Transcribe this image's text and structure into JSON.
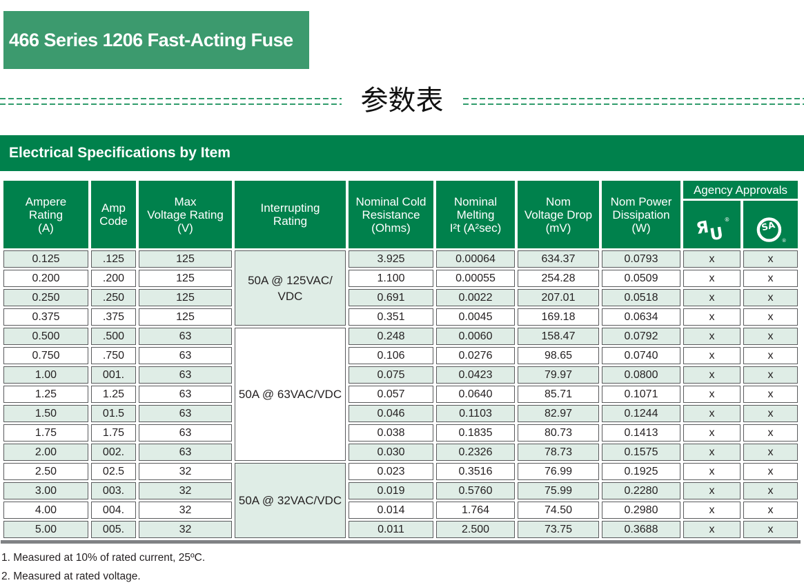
{
  "page": {
    "banner_title": "466 Series 1206 Fast-Acting Fuse",
    "cjk_title": "参数表",
    "footnotes": [
      "1. Measured at 10% of rated current, 25ºC.",
      "2. Measured at rated voltage."
    ]
  },
  "colors": {
    "banner_green": "#3C9A6E",
    "brand_green": "#00814C",
    "row_tint_green": "#DFEDE6",
    "cell_border_gray": "#58595B",
    "bottom_rule_gray": "#808285",
    "dash_green": "#2F9B6B"
  },
  "table": {
    "section_title": "Electrical Specifications by Item",
    "headers": [
      {
        "label": "Ampere\nRating\n(A)"
      },
      {
        "label": "Amp\nCode"
      },
      {
        "label": "Max\nVoltage Rating\n(V)"
      },
      {
        "label": "Interrupting\nRating"
      },
      {
        "label": "Nominal Cold\nResistance\n(Ohms)"
      },
      {
        "label": "Nominal\nMelting\nI²t (A²sec)"
      },
      {
        "label": "Nom\nVoltage Drop\n(mV)"
      },
      {
        "label": "Nom Power\nDissipation\n(W)"
      }
    ],
    "agency": {
      "label": "Agency Approvals",
      "logos": [
        {
          "name": "ul-recognized-mark"
        },
        {
          "name": "csa-mark"
        }
      ]
    },
    "groups": [
      {
        "interrupting_rating": "50A @ 125VAC/\nVDC",
        "rows": [
          {
            "ampere_rating": "0.125",
            "amp_code": ".125",
            "max_voltage_rating": "125",
            "nominal_cold_resistance": "3.925",
            "nominal_melting_i2t": "0.00064",
            "nom_voltage_drop": "634.37",
            "nom_power_dissipation": "0.0793",
            "ul": "x",
            "csa": "x"
          },
          {
            "ampere_rating": "0.200",
            "amp_code": ".200",
            "max_voltage_rating": "125",
            "nominal_cold_resistance": "1.100",
            "nominal_melting_i2t": "0.00055",
            "nom_voltage_drop": "254.28",
            "nom_power_dissipation": "0.0509",
            "ul": "x",
            "csa": "x"
          },
          {
            "ampere_rating": "0.250",
            "amp_code": ".250",
            "max_voltage_rating": "125",
            "nominal_cold_resistance": "0.691",
            "nominal_melting_i2t": "0.0022",
            "nom_voltage_drop": "207.01",
            "nom_power_dissipation": "0.0518",
            "ul": "x",
            "csa": "x"
          },
          {
            "ampere_rating": "0.375",
            "amp_code": ".375",
            "max_voltage_rating": "125",
            "nominal_cold_resistance": "0.351",
            "nominal_melting_i2t": "0.0045",
            "nom_voltage_drop": "169.18",
            "nom_power_dissipation": "0.0634",
            "ul": "x",
            "csa": "x"
          }
        ]
      },
      {
        "interrupting_rating": "50A @ 63VAC/VDC",
        "rows": [
          {
            "ampere_rating": "0.500",
            "amp_code": ".500",
            "max_voltage_rating": "63",
            "nominal_cold_resistance": "0.248",
            "nominal_melting_i2t": "0.0060",
            "nom_voltage_drop": "158.47",
            "nom_power_dissipation": "0.0792",
            "ul": "x",
            "csa": "x"
          },
          {
            "ampere_rating": "0.750",
            "amp_code": ".750",
            "max_voltage_rating": "63",
            "nominal_cold_resistance": "0.106",
            "nominal_melting_i2t": "0.0276",
            "nom_voltage_drop": "98.65",
            "nom_power_dissipation": "0.0740",
            "ul": "x",
            "csa": "x"
          },
          {
            "ampere_rating": "1.00",
            "amp_code": "001.",
            "max_voltage_rating": "63",
            "nominal_cold_resistance": "0.075",
            "nominal_melting_i2t": "0.0423",
            "nom_voltage_drop": "79.97",
            "nom_power_dissipation": "0.0800",
            "ul": "x",
            "csa": "x"
          },
          {
            "ampere_rating": "1.25",
            "amp_code": "1.25",
            "max_voltage_rating": "63",
            "nominal_cold_resistance": "0.057",
            "nominal_melting_i2t": "0.0640",
            "nom_voltage_drop": "85.71",
            "nom_power_dissipation": "0.1071",
            "ul": "x",
            "csa": "x"
          },
          {
            "ampere_rating": "1.50",
            "amp_code": "01.5",
            "max_voltage_rating": "63",
            "nominal_cold_resistance": "0.046",
            "nominal_melting_i2t": "0.1103",
            "nom_voltage_drop": "82.97",
            "nom_power_dissipation": "0.1244",
            "ul": "x",
            "csa": "x"
          },
          {
            "ampere_rating": "1.75",
            "amp_code": "1.75",
            "max_voltage_rating": "63",
            "nominal_cold_resistance": "0.038",
            "nominal_melting_i2t": "0.1835",
            "nom_voltage_drop": "80.73",
            "nom_power_dissipation": "0.1413",
            "ul": "x",
            "csa": "x"
          },
          {
            "ampere_rating": "2.00",
            "amp_code": "002.",
            "max_voltage_rating": "63",
            "nominal_cold_resistance": "0.030",
            "nominal_melting_i2t": "0.2326",
            "nom_voltage_drop": "78.73",
            "nom_power_dissipation": "0.1575",
            "ul": "x",
            "csa": "x"
          }
        ]
      },
      {
        "interrupting_rating": "50A @ 32VAC/VDC",
        "rows": [
          {
            "ampere_rating": "2.50",
            "amp_code": "02.5",
            "max_voltage_rating": "32",
            "nominal_cold_resistance": "0.023",
            "nominal_melting_i2t": "0.3516",
            "nom_voltage_drop": "76.99",
            "nom_power_dissipation": "0.1925",
            "ul": "x",
            "csa": "x"
          },
          {
            "ampere_rating": "3.00",
            "amp_code": "003.",
            "max_voltage_rating": "32",
            "nominal_cold_resistance": "0.019",
            "nominal_melting_i2t": "0.5760",
            "nom_voltage_drop": "75.99",
            "nom_power_dissipation": "0.2280",
            "ul": "x",
            "csa": "x"
          },
          {
            "ampere_rating": "4.00",
            "amp_code": "004.",
            "max_voltage_rating": "32",
            "nominal_cold_resistance": "0.014",
            "nominal_melting_i2t": "1.764",
            "nom_voltage_drop": "74.50",
            "nom_power_dissipation": "0.2980",
            "ul": "x",
            "csa": "x"
          },
          {
            "ampere_rating": "5.00",
            "amp_code": "005.",
            "max_voltage_rating": "32",
            "nominal_cold_resistance": "0.011",
            "nominal_melting_i2t": "2.500",
            "nom_voltage_drop": "73.75",
            "nom_power_dissipation": "0.3688",
            "ul": "x",
            "csa": "x"
          }
        ]
      }
    ]
  }
}
